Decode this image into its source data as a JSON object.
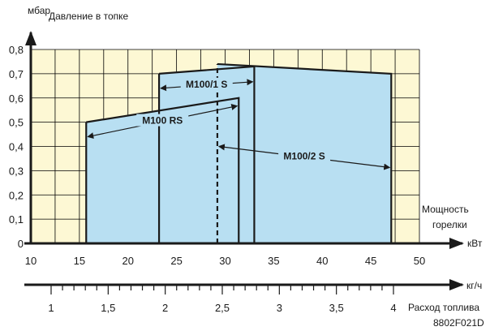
{
  "chart_data": {
    "type": "area",
    "ylabel": "мбар",
    "ytitle": "Давление в топке",
    "xunit": "кВт",
    "xlabel_line1": "Мощность",
    "xlabel_line2": "горелки",
    "x2unit": "кг/ч",
    "x2label": "Расход топлива",
    "figure_code": "8802F021D",
    "xlim": [
      10,
      50
    ],
    "ylim": [
      0,
      0.8
    ],
    "x_ticks": [
      10,
      15,
      20,
      25,
      30,
      35,
      40,
      45,
      50
    ],
    "y_ticks": [
      0,
      0.1,
      0.2,
      0.3,
      0.4,
      0.5,
      0.6,
      0.7,
      0.8
    ],
    "x_tick_labels": [
      "10",
      "15",
      "20",
      "25",
      "30",
      "35",
      "40",
      "45",
      "50"
    ],
    "y_tick_labels": [
      "0",
      "0,1",
      "0,2",
      "0,3",
      "0,4",
      "0,5",
      "0,6",
      "0,7",
      "0,8"
    ],
    "x2_ticks": [
      1,
      1.5,
      2,
      2.5,
      3,
      3.5,
      4
    ],
    "x2_tick_labels": [
      "1",
      "1,5",
      "2",
      "2,5",
      "3",
      "3,5",
      "4"
    ],
    "grid": true,
    "colors": {
      "plot_bg": "#fdf8d4",
      "region_fill": "#b8dff2",
      "grid": "#000000",
      "line": "#1a1a1a"
    },
    "series": [
      {
        "name": "M100 RS",
        "boundary": [
          [
            15.7,
            0
          ],
          [
            15.7,
            0.5
          ],
          [
            31.4,
            0.6
          ],
          [
            31.4,
            0
          ]
        ],
        "arrow_range": [
          15.7,
          31.4
        ],
        "arrow_y": 0.44
      },
      {
        "name": "M100/1 S",
        "boundary": [
          [
            23.2,
            0
          ],
          [
            23.2,
            0.7
          ],
          [
            33,
            0.73
          ],
          [
            33,
            0
          ]
        ],
        "arrow_range": [
          23.2,
          33
        ],
        "arrow_y": 0.64
      },
      {
        "name": "M100/2 S",
        "boundary": [
          [
            29.2,
            0
          ],
          [
            29.2,
            0.74
          ],
          [
            47.1,
            0.7
          ],
          [
            47.1,
            0
          ]
        ],
        "arrow_range": [
          29.2,
          47.1
        ],
        "arrow_y": 0.4,
        "dashed_left_edge": true
      }
    ]
  }
}
